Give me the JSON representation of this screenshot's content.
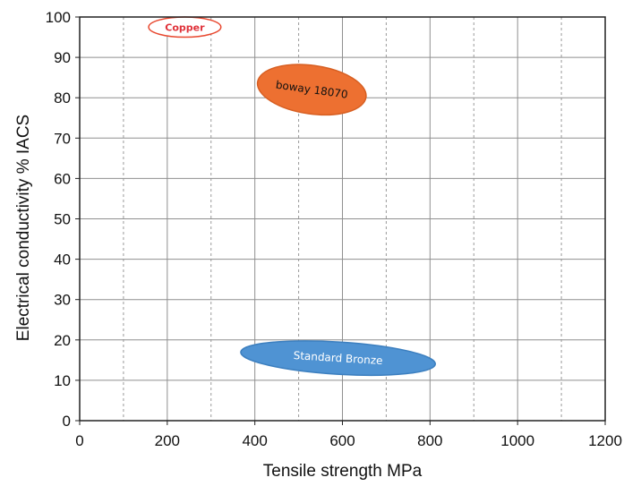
{
  "chart_data": {
    "type": "scatter",
    "xlabel": "Tensile strength MPa",
    "ylabel": "Electrical conductivity % IACS",
    "xlim": [
      0,
      1200
    ],
    "ylim": [
      0,
      100
    ],
    "x_ticks": [
      0,
      200,
      400,
      600,
      800,
      1000,
      1200
    ],
    "y_ticks": [
      0,
      10,
      20,
      30,
      40,
      50,
      60,
      70,
      80,
      90,
      100
    ],
    "grid": true,
    "regions": [
      {
        "name": "Copper",
        "shape": "ellipse",
        "center": [
          240,
          97.5
        ],
        "x_extent": [
          155,
          320
        ],
        "y_extent": [
          95,
          100
        ],
        "fill": "#ffffff",
        "stroke": "#e8472e",
        "label_color": "#e0323a"
      },
      {
        "name": "boway 18070",
        "shape": "ellipse",
        "center": [
          530,
          82
        ],
        "x_extent": [
          405,
          655
        ],
        "y_extent": [
          76,
          88
        ],
        "fill": "#ed7031",
        "stroke": "#d75f22",
        "label_color": "#111111"
      },
      {
        "name": "Standard Bronze",
        "shape": "ellipse",
        "center": [
          590,
          15.5
        ],
        "x_extent": [
          365,
          810
        ],
        "y_extent": [
          11.5,
          19.5
        ],
        "fill": "#4f93d3",
        "stroke": "#3c7fbf",
        "label_color": "#ffffff"
      }
    ]
  }
}
